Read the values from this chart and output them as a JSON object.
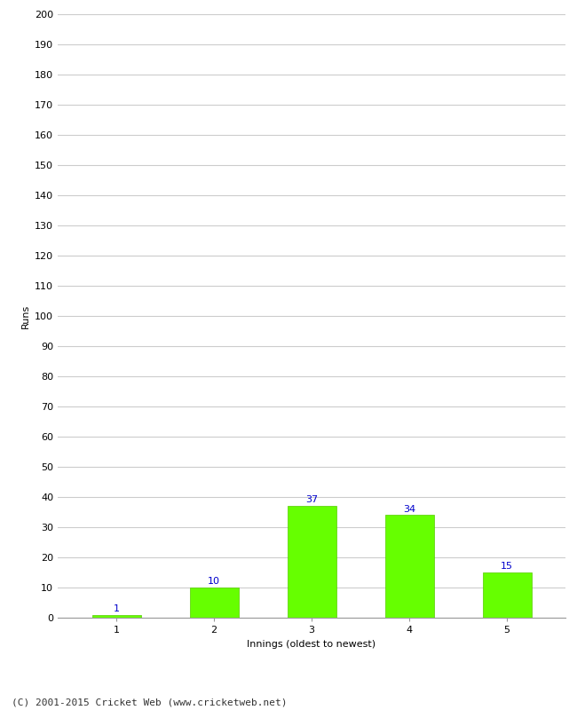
{
  "categories": [
    "1",
    "2",
    "3",
    "4",
    "5"
  ],
  "values": [
    1,
    10,
    37,
    34,
    15
  ],
  "bar_color": "#66ff00",
  "bar_edge_color": "#55cc00",
  "label_color": "#0000cc",
  "xlabel": "Innings (oldest to newest)",
  "ylabel": "Runs",
  "ylim": [
    0,
    200
  ],
  "yticks": [
    0,
    10,
    20,
    30,
    40,
    50,
    60,
    70,
    80,
    90,
    100,
    110,
    120,
    130,
    140,
    150,
    160,
    170,
    180,
    190,
    200
  ],
  "grid_color": "#cccccc",
  "background_color": "#ffffff",
  "footer": "(C) 2001-2015 Cricket Web (www.cricketweb.net)",
  "label_fontsize": 8,
  "axis_fontsize": 8,
  "footer_fontsize": 8,
  "bar_width": 0.5
}
